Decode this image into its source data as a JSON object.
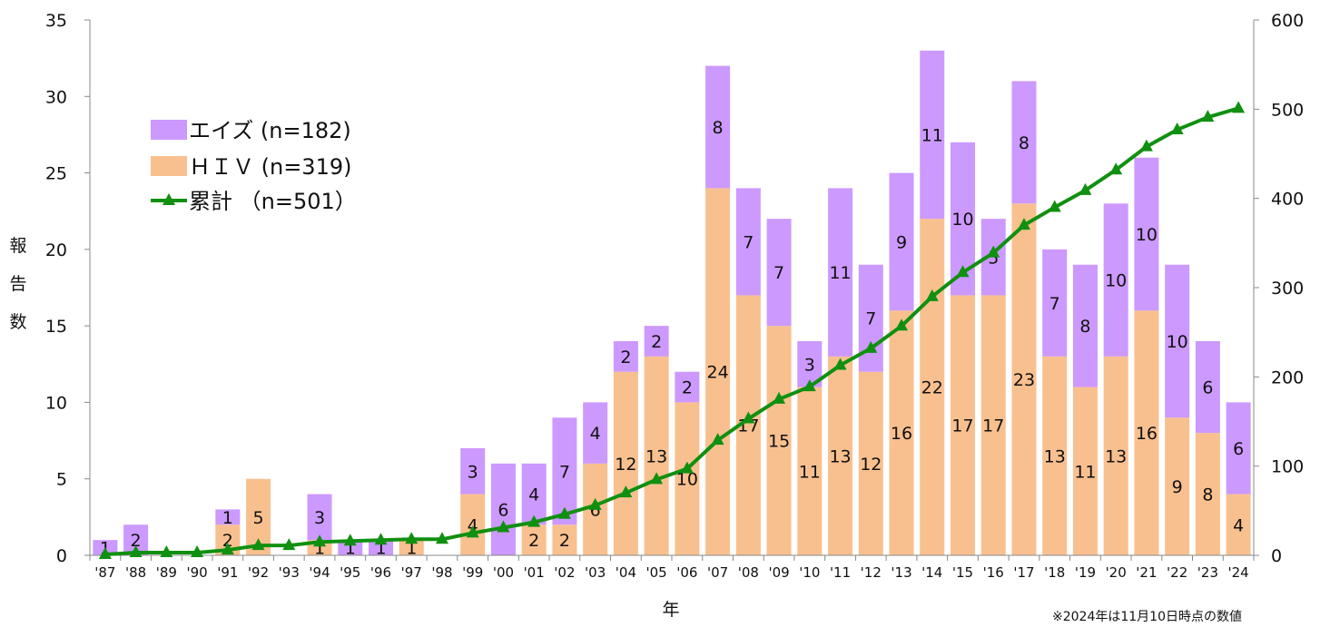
{
  "chart_data": {
    "type": "bar",
    "stacked": true,
    "categories": [
      "'87",
      "'88",
      "'89",
      "'90",
      "'91",
      "'92",
      "'93",
      "'94",
      "'95",
      "'96",
      "'97",
      "'98",
      "'99",
      "'00",
      "'01",
      "'02",
      "'03",
      "'04",
      "'05",
      "'06",
      "'07",
      "'08",
      "'09",
      "'10",
      "'11",
      "'12",
      "'13",
      "'14",
      "'15",
      "'16",
      "'17",
      "'18",
      "'19",
      "'20",
      "'21",
      "'22",
      "'23",
      "'24"
    ],
    "series": [
      {
        "name": "ＨＩＶ (n=319)",
        "kind": "bar",
        "color": "#f9c08f",
        "values": [
          0,
          0,
          0,
          0,
          2,
          5,
          0,
          1,
          0,
          0,
          1,
          0,
          4,
          0,
          2,
          2,
          6,
          12,
          13,
          10,
          24,
          17,
          15,
          11,
          13,
          12,
          16,
          22,
          17,
          17,
          23,
          13,
          11,
          13,
          16,
          9,
          8,
          4
        ],
        "labels": [
          "",
          "",
          "",
          "",
          "2",
          "5",
          "",
          "1",
          "",
          "",
          "1",
          "",
          "4",
          "",
          "2",
          "2",
          "6",
          "12",
          "13",
          "10",
          "24",
          "17",
          "15",
          "11",
          "13",
          "12",
          "16",
          "22",
          "17",
          "17",
          "23",
          "13",
          "11",
          "13",
          "16",
          "9",
          "8",
          "4"
        ]
      },
      {
        "name": "エイズ (n=182)",
        "kind": "bar",
        "color": "#cc99ff",
        "values": [
          1,
          2,
          0,
          0,
          1,
          0,
          0,
          3,
          1,
          1,
          0,
          0,
          3,
          6,
          4,
          7,
          4,
          2,
          2,
          2,
          8,
          7,
          7,
          3,
          11,
          7,
          9,
          11,
          10,
          5,
          8,
          7,
          8,
          10,
          10,
          10,
          6,
          6
        ],
        "labels": [
          "1",
          "2",
          "",
          "",
          "1",
          "",
          "",
          "3",
          "1",
          "1",
          "",
          "",
          "3",
          "6",
          "4",
          "7",
          "4",
          "2",
          "2",
          "2",
          "8",
          "7",
          "7",
          "3",
          "11",
          "7",
          "9",
          "11",
          "10",
          "5",
          "8",
          "7",
          "8",
          "10",
          "10",
          "10",
          "6",
          "6"
        ]
      },
      {
        "name": "累計 （n=501）",
        "kind": "line",
        "axis": "right",
        "color": "#109010",
        "values": [
          1,
          3,
          3,
          3,
          6,
          11,
          11,
          15,
          16,
          17,
          18,
          18,
          25,
          31,
          37,
          46,
          56,
          70,
          85,
          97,
          129,
          153,
          175,
          189,
          213,
          232,
          257,
          290,
          317,
          339,
          370,
          390,
          409,
          432,
          458,
          477,
          491,
          501
        ]
      }
    ],
    "y_left": {
      "label": "報告数",
      "ticks": [
        "0",
        "5",
        "10",
        "15",
        "20",
        "25",
        "30",
        "35"
      ],
      "ylim": [
        0,
        35
      ]
    },
    "y_right": {
      "ticks": [
        "0",
        "100",
        "200",
        "300",
        "400",
        "500",
        "600"
      ],
      "ylim": [
        0,
        600
      ]
    },
    "xlabel": "年",
    "legend": "upper-left",
    "grid": false,
    "note": "※2024年は11月10日時点の数値"
  }
}
